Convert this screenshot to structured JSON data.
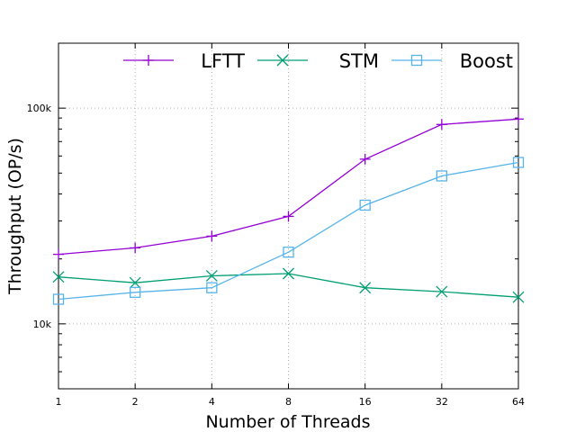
{
  "chart_data": {
    "type": "line",
    "title": "",
    "xlabel": "Number of Threads",
    "ylabel": "Throughput (OP/s)",
    "x": [
      1,
      2,
      4,
      8,
      16,
      32,
      64
    ],
    "x_scale": "log2",
    "y_scale": "log10",
    "ylim": [
      5000,
      200000
    ],
    "y_ticks": [
      {
        "value": 10000,
        "label": "10k"
      },
      {
        "value": 100000,
        "label": "100k"
      }
    ],
    "grid": true,
    "legend_position": "top",
    "series": [
      {
        "name": "LFTT",
        "marker": "plus",
        "color": "#9400d3",
        "values": [
          21000,
          22500,
          25500,
          31500,
          58000,
          84000,
          89000
        ]
      },
      {
        "name": "STM",
        "marker": "x",
        "color": "#009e73",
        "values": [
          16500,
          15500,
          16700,
          17100,
          14700,
          14100,
          13300
        ]
      },
      {
        "name": "Boost",
        "marker": "square",
        "color": "#56b4e9",
        "values": [
          13000,
          14000,
          14700,
          21500,
          35500,
          48500,
          56000
        ]
      }
    ]
  }
}
